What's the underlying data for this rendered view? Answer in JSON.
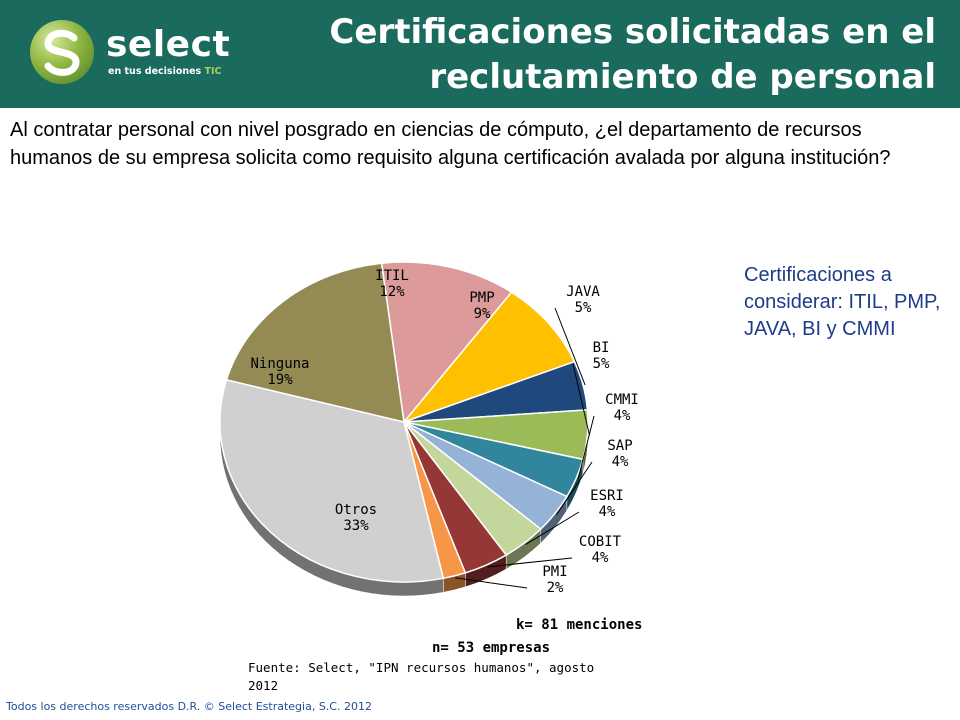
{
  "header": {
    "logo_word": "select",
    "logo_tagline": "en tus decisiones",
    "logo_tagline_accent": "TIC",
    "title": "Certificaciones solicitadas en el reclutamiento de personal"
  },
  "question": "Al contratar personal con nivel posgrado en ciencias de cómputo, ¿el departamento de recursos humanos de su empresa solicita como requisito alguna certificación avalada por alguna institución?",
  "note": "Certificaciones a considerar: ITIL, PMP, JAVA, BI y CMMI",
  "stats": {
    "k": "k= 81 menciones",
    "n": "n= 53 empresas"
  },
  "source": {
    "line1": "Fuente: Select, \"IPN recursos humanos\", agosto",
    "line2": "2012"
  },
  "footer": "Todos los derechos reservados D.R. © Select Estrategia, S.C. 2012",
  "chart_data": {
    "type": "pie",
    "title": "",
    "slices": [
      {
        "label": "ITIL",
        "value": 12,
        "display": "12%",
        "color": "#dc9a9a"
      },
      {
        "label": "PMP",
        "value": 9,
        "display": "9%",
        "color": "#ffc000"
      },
      {
        "label": "JAVA",
        "value": 5,
        "display": "5%",
        "color": "#1f497d"
      },
      {
        "label": "BI",
        "value": 5,
        "display": "5%",
        "color": "#9bbb59"
      },
      {
        "label": "CMMI",
        "value": 4,
        "display": "4%",
        "color": "#31859c"
      },
      {
        "label": "SAP",
        "value": 4,
        "display": "4%",
        "color": "#95b3d7"
      },
      {
        "label": "ESRI",
        "value": 4,
        "display": "4%",
        "color": "#c3d69b"
      },
      {
        "label": "COBIT",
        "value": 4,
        "display": "4%",
        "color": "#953735"
      },
      {
        "label": "PMI",
        "value": 2,
        "display": "2%",
        "color": "#f79646"
      },
      {
        "label": "Otros",
        "value": 33,
        "display": "33%",
        "color": "#d0d0d0"
      },
      {
        "label": "Ninguna",
        "value": 19,
        "display": "19%",
        "color": "#948a54"
      }
    ]
  }
}
